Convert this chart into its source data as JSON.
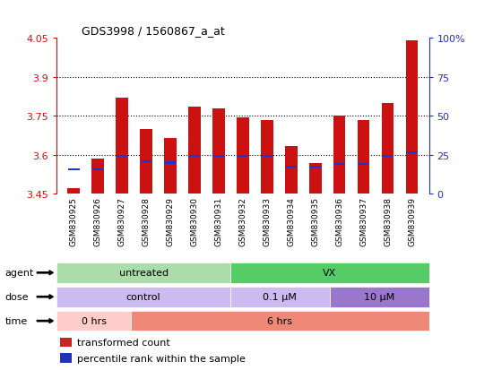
{
  "title": "GDS3998 / 1560867_a_at",
  "samples": [
    "GSM830925",
    "GSM830926",
    "GSM830927",
    "GSM830928",
    "GSM830929",
    "GSM830930",
    "GSM830931",
    "GSM830932",
    "GSM830933",
    "GSM830934",
    "GSM830935",
    "GSM830936",
    "GSM830937",
    "GSM830938",
    "GSM830939"
  ],
  "bar_values": [
    3.473,
    3.585,
    3.82,
    3.7,
    3.665,
    3.785,
    3.78,
    3.745,
    3.735,
    3.635,
    3.57,
    3.75,
    3.735,
    3.8,
    4.04
  ],
  "blue_values": [
    3.545,
    3.545,
    3.595,
    3.575,
    3.57,
    3.595,
    3.595,
    3.595,
    3.595,
    3.555,
    3.555,
    3.565,
    3.565,
    3.595,
    3.61
  ],
  "ymin": 3.45,
  "ymax": 4.05,
  "yticks": [
    3.45,
    3.6,
    3.75,
    3.9,
    4.05
  ],
  "ytick_labels": [
    "3.45",
    "3.6",
    "3.75",
    "3.9",
    "4.05"
  ],
  "grid_lines": [
    3.6,
    3.75,
    3.9
  ],
  "right_yticks": [
    0,
    25,
    50,
    75,
    100
  ],
  "bar_color": "#cc1111",
  "blue_color": "#2233cc",
  "bar_color_legend": "#cc2222",
  "blue_color_legend": "#2233bb",
  "left_tick_color": "#cc1111",
  "right_tick_color": "#2233bb",
  "agent_untreated_color": "#aaddaa",
  "agent_vx_color": "#55cc66",
  "dose_control_color": "#ccbbee",
  "dose_01_color": "#ccbbee",
  "dose_10_color": "#9977cc",
  "time_0_color": "#ffcccc",
  "time_6_color": "#ee8877",
  "legend_items": [
    "transformed count",
    "percentile rank within the sample"
  ],
  "legend_colors": [
    "#cc2222",
    "#2233bb"
  ]
}
